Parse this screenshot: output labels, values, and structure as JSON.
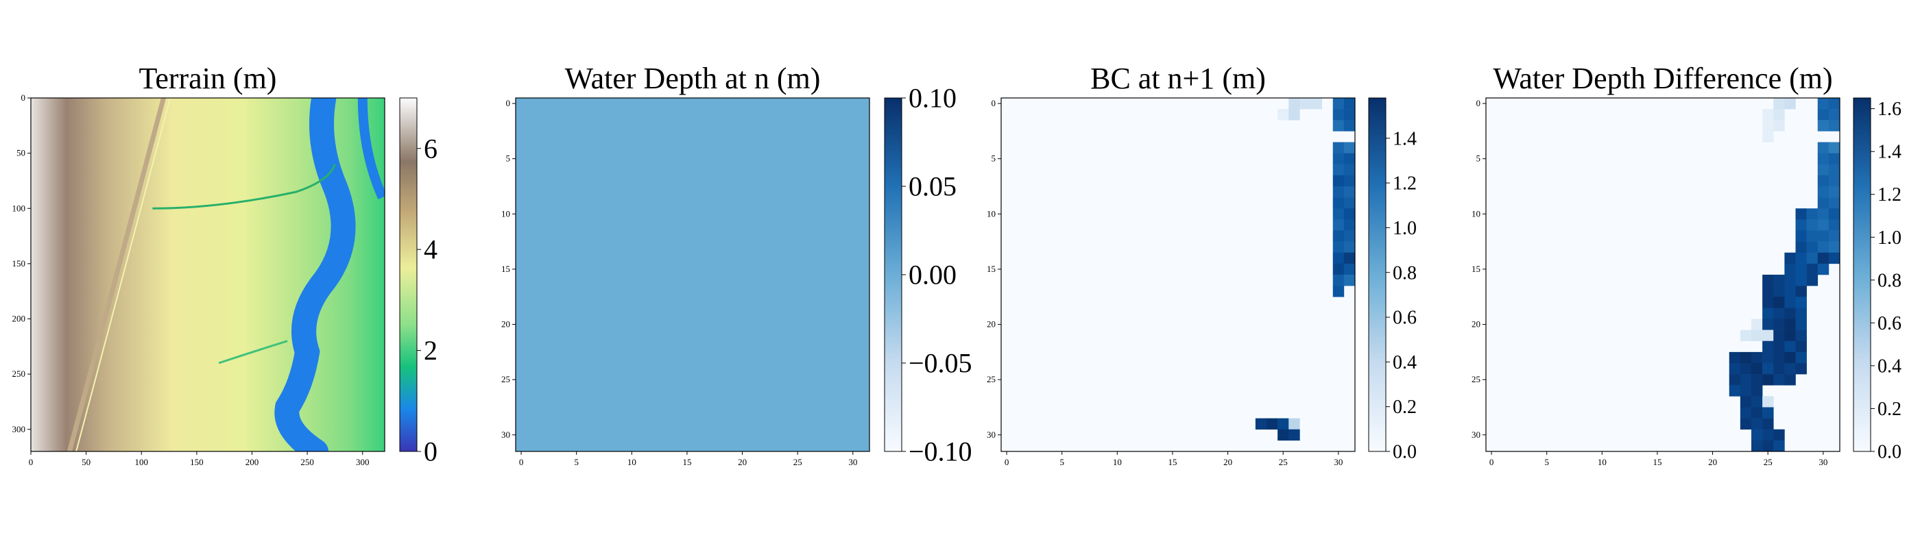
{
  "chart_data": [
    {
      "type": "heatmap",
      "title": "Terrain (m)",
      "xlim": [
        0,
        320
      ],
      "ylim": [
        320,
        0
      ],
      "x_ticks": [
        0,
        50,
        100,
        150,
        200,
        250,
        300
      ],
      "y_ticks": [
        0,
        50,
        100,
        150,
        200,
        250,
        300
      ],
      "colormap": "terrain",
      "colorbar": {
        "range": [
          0,
          7
        ],
        "ticks": [
          0,
          2,
          4,
          6
        ],
        "tick_labels": [
          "0",
          "2",
          "4",
          "6"
        ]
      },
      "colors": {
        "ramp": [
          "#3a36b5",
          "#1a88e8",
          "#17c27c",
          "#8ee08a",
          "#ecee9a",
          "#c2a877",
          "#8b7766",
          "#fdfdfd"
        ]
      }
    },
    {
      "type": "heatmap",
      "title": "Water Depth at n (m)",
      "xlim": [
        -0.5,
        31.5
      ],
      "ylim": [
        31.5,
        -0.5
      ],
      "x_ticks": [
        0,
        5,
        10,
        15,
        20,
        25,
        30
      ],
      "y_ticks": [
        0,
        5,
        10,
        15,
        20,
        25,
        30
      ],
      "uniform_value": 0.0,
      "colormap": "Blues",
      "colorbar": {
        "range": [
          -0.1,
          0.1
        ],
        "ticks": [
          -0.1,
          -0.05,
          0.0,
          0.05,
          0.1
        ],
        "tick_labels": [
          "−0.10",
          "−0.05",
          "0.00",
          "0.05",
          "0.10"
        ]
      }
    },
    {
      "type": "heatmap",
      "title": "BC at n+1 (m)",
      "xlim": [
        -0.5,
        31.5
      ],
      "ylim": [
        31.5,
        -0.5
      ],
      "x_ticks": [
        0,
        5,
        10,
        15,
        20,
        25,
        30
      ],
      "y_ticks": [
        0,
        5,
        10,
        15,
        20,
        25,
        30
      ],
      "colormap": "Blues",
      "colorbar": {
        "range": [
          0,
          1.58
        ],
        "ticks": [
          0,
          0.2,
          0.4,
          0.6,
          0.8,
          1.0,
          1.2,
          1.4
        ],
        "tick_labels": [
          "0.0",
          "0.2",
          "0.4",
          "0.6",
          "0.8",
          "1.0",
          "1.2",
          "1.4"
        ]
      },
      "cells": [
        [
          0,
          26,
          0.35
        ],
        [
          0,
          27,
          0.3
        ],
        [
          0,
          28,
          0.3
        ],
        [
          0,
          30,
          1.25
        ],
        [
          0,
          31,
          1.35
        ],
        [
          1,
          25,
          0.15
        ],
        [
          1,
          26,
          0.35
        ],
        [
          1,
          30,
          1.3
        ],
        [
          1,
          31,
          1.35
        ],
        [
          2,
          30,
          1.2
        ],
        [
          2,
          31,
          1.3
        ],
        [
          4,
          30,
          1.25
        ],
        [
          4,
          31,
          1.15
        ],
        [
          5,
          30,
          1.3
        ],
        [
          5,
          31,
          1.35
        ],
        [
          6,
          30,
          1.25
        ],
        [
          6,
          31,
          1.3
        ],
        [
          7,
          30,
          1.4
        ],
        [
          7,
          31,
          1.35
        ],
        [
          8,
          30,
          1.3
        ],
        [
          8,
          31,
          1.25
        ],
        [
          9,
          30,
          1.35
        ],
        [
          9,
          31,
          1.3
        ],
        [
          10,
          30,
          1.3
        ],
        [
          10,
          31,
          1.4
        ],
        [
          11,
          30,
          1.25
        ],
        [
          11,
          31,
          1.35
        ],
        [
          12,
          30,
          1.35
        ],
        [
          12,
          31,
          1.3
        ],
        [
          13,
          30,
          1.3
        ],
        [
          13,
          31,
          1.25
        ],
        [
          14,
          30,
          1.4
        ],
        [
          14,
          31,
          1.5
        ],
        [
          15,
          30,
          1.45
        ],
        [
          15,
          31,
          1.35
        ],
        [
          16,
          30,
          1.3
        ],
        [
          16,
          31,
          1.2
        ],
        [
          17,
          30,
          1.35
        ],
        [
          29,
          23,
          1.5
        ],
        [
          29,
          24,
          1.55
        ],
        [
          29,
          25,
          1.45
        ],
        [
          29,
          26,
          0.45
        ],
        [
          30,
          25,
          1.55
        ],
        [
          30,
          26,
          1.5
        ]
      ]
    },
    {
      "type": "heatmap",
      "title": "Water Depth Difference (m)",
      "xlim": [
        -0.5,
        31.5
      ],
      "ylim": [
        31.5,
        -0.5
      ],
      "x_ticks": [
        0,
        5,
        10,
        15,
        20,
        25,
        30
      ],
      "y_ticks": [
        0,
        5,
        10,
        15,
        20,
        25,
        30
      ],
      "colormap": "Blues",
      "colorbar": {
        "range": [
          0,
          1.65
        ],
        "ticks": [
          0,
          0.2,
          0.4,
          0.6,
          0.8,
          1.0,
          1.2,
          1.4,
          1.6
        ],
        "tick_labels": [
          "0.0",
          "0.2",
          "0.4",
          "0.6",
          "0.8",
          "1.0",
          "1.2",
          "1.4",
          "1.6"
        ]
      },
      "cells": [
        [
          0,
          26,
          0.3
        ],
        [
          0,
          27,
          0.35
        ],
        [
          0,
          30,
          1.3
        ],
        [
          0,
          31,
          1.35
        ],
        [
          1,
          25,
          0.15
        ],
        [
          1,
          26,
          0.25
        ],
        [
          1,
          30,
          1.35
        ],
        [
          1,
          31,
          1.3
        ],
        [
          2,
          25,
          0.15
        ],
        [
          2,
          26,
          0.2
        ],
        [
          2,
          30,
          1.2
        ],
        [
          2,
          31,
          1.25
        ],
        [
          3,
          25,
          0.15
        ],
        [
          4,
          30,
          1.25
        ],
        [
          4,
          31,
          1.15
        ],
        [
          5,
          30,
          1.3
        ],
        [
          5,
          31,
          1.35
        ],
        [
          6,
          30,
          1.25
        ],
        [
          6,
          31,
          1.3
        ],
        [
          7,
          30,
          1.35
        ],
        [
          7,
          31,
          1.3
        ],
        [
          8,
          30,
          1.3
        ],
        [
          8,
          31,
          1.25
        ],
        [
          9,
          30,
          1.35
        ],
        [
          9,
          31,
          1.3
        ],
        [
          10,
          28,
          1.5
        ],
        [
          10,
          29,
          1.35
        ],
        [
          10,
          30,
          1.3
        ],
        [
          10,
          31,
          1.4
        ],
        [
          11,
          28,
          1.4
        ],
        [
          11,
          29,
          1.3
        ],
        [
          11,
          30,
          1.25
        ],
        [
          11,
          31,
          1.35
        ],
        [
          12,
          28,
          1.45
        ],
        [
          12,
          29,
          1.35
        ],
        [
          12,
          30,
          1.35
        ],
        [
          12,
          31,
          1.3
        ],
        [
          13,
          28,
          1.5
        ],
        [
          13,
          29,
          1.4
        ],
        [
          13,
          30,
          1.3
        ],
        [
          13,
          31,
          1.25
        ],
        [
          14,
          27,
          1.55
        ],
        [
          14,
          28,
          1.45
        ],
        [
          14,
          29,
          1.35
        ],
        [
          14,
          30,
          1.6
        ],
        [
          14,
          31,
          1.5
        ],
        [
          15,
          27,
          1.5
        ],
        [
          15,
          28,
          1.45
        ],
        [
          15,
          29,
          1.55
        ],
        [
          15,
          30,
          1.4
        ],
        [
          16,
          25,
          1.6
        ],
        [
          16,
          26,
          1.55
        ],
        [
          16,
          27,
          1.5
        ],
        [
          16,
          28,
          1.45
        ],
        [
          16,
          29,
          1.55
        ],
        [
          17,
          25,
          1.6
        ],
        [
          17,
          26,
          1.55
        ],
        [
          17,
          27,
          1.5
        ],
        [
          17,
          28,
          1.6
        ],
        [
          18,
          25,
          1.6
        ],
        [
          18,
          26,
          1.65
        ],
        [
          18,
          27,
          1.5
        ],
        [
          18,
          28,
          1.45
        ],
        [
          19,
          25,
          1.5
        ],
        [
          19,
          26,
          1.55
        ],
        [
          19,
          27,
          1.6
        ],
        [
          19,
          28,
          1.5
        ],
        [
          20,
          24,
          0.2
        ],
        [
          20,
          25,
          1.55
        ],
        [
          20,
          26,
          1.6
        ],
        [
          20,
          27,
          1.65
        ],
        [
          20,
          28,
          1.5
        ],
        [
          21,
          23,
          0.25
        ],
        [
          21,
          24,
          0.3
        ],
        [
          21,
          25,
          0.3
        ],
        [
          21,
          26,
          1.6
        ],
        [
          21,
          27,
          1.65
        ],
        [
          21,
          28,
          1.55
        ],
        [
          22,
          25,
          1.55
        ],
        [
          22,
          26,
          1.6
        ],
        [
          22,
          27,
          1.5
        ],
        [
          22,
          28,
          1.6
        ],
        [
          23,
          22,
          1.6
        ],
        [
          23,
          23,
          1.65
        ],
        [
          23,
          24,
          1.6
        ],
        [
          23,
          25,
          1.55
        ],
        [
          23,
          26,
          1.6
        ],
        [
          23,
          27,
          1.65
        ],
        [
          23,
          28,
          1.5
        ],
        [
          24,
          22,
          1.55
        ],
        [
          24,
          23,
          1.6
        ],
        [
          24,
          24,
          1.65
        ],
        [
          24,
          25,
          1.5
        ],
        [
          24,
          26,
          1.6
        ],
        [
          24,
          27,
          1.55
        ],
        [
          24,
          28,
          1.6
        ],
        [
          25,
          22,
          1.6
        ],
        [
          25,
          23,
          1.55
        ],
        [
          25,
          24,
          1.6
        ],
        [
          25,
          25,
          1.65
        ],
        [
          25,
          26,
          1.55
        ],
        [
          25,
          27,
          1.6
        ],
        [
          26,
          22,
          1.5
        ],
        [
          26,
          23,
          1.55
        ],
        [
          26,
          24,
          1.6
        ],
        [
          27,
          23,
          1.6
        ],
        [
          27,
          24,
          1.55
        ],
        [
          27,
          25,
          0.3
        ],
        [
          28,
          23,
          1.55
        ],
        [
          28,
          24,
          1.6
        ],
        [
          28,
          25,
          1.5
        ],
        [
          29,
          23,
          1.6
        ],
        [
          29,
          24,
          1.55
        ],
        [
          29,
          25,
          1.6
        ],
        [
          30,
          24,
          1.5
        ],
        [
          30,
          25,
          1.55
        ],
        [
          30,
          26,
          1.6
        ],
        [
          31,
          24,
          1.55
        ],
        [
          31,
          25,
          1.6
        ],
        [
          31,
          26,
          1.5
        ]
      ]
    }
  ]
}
